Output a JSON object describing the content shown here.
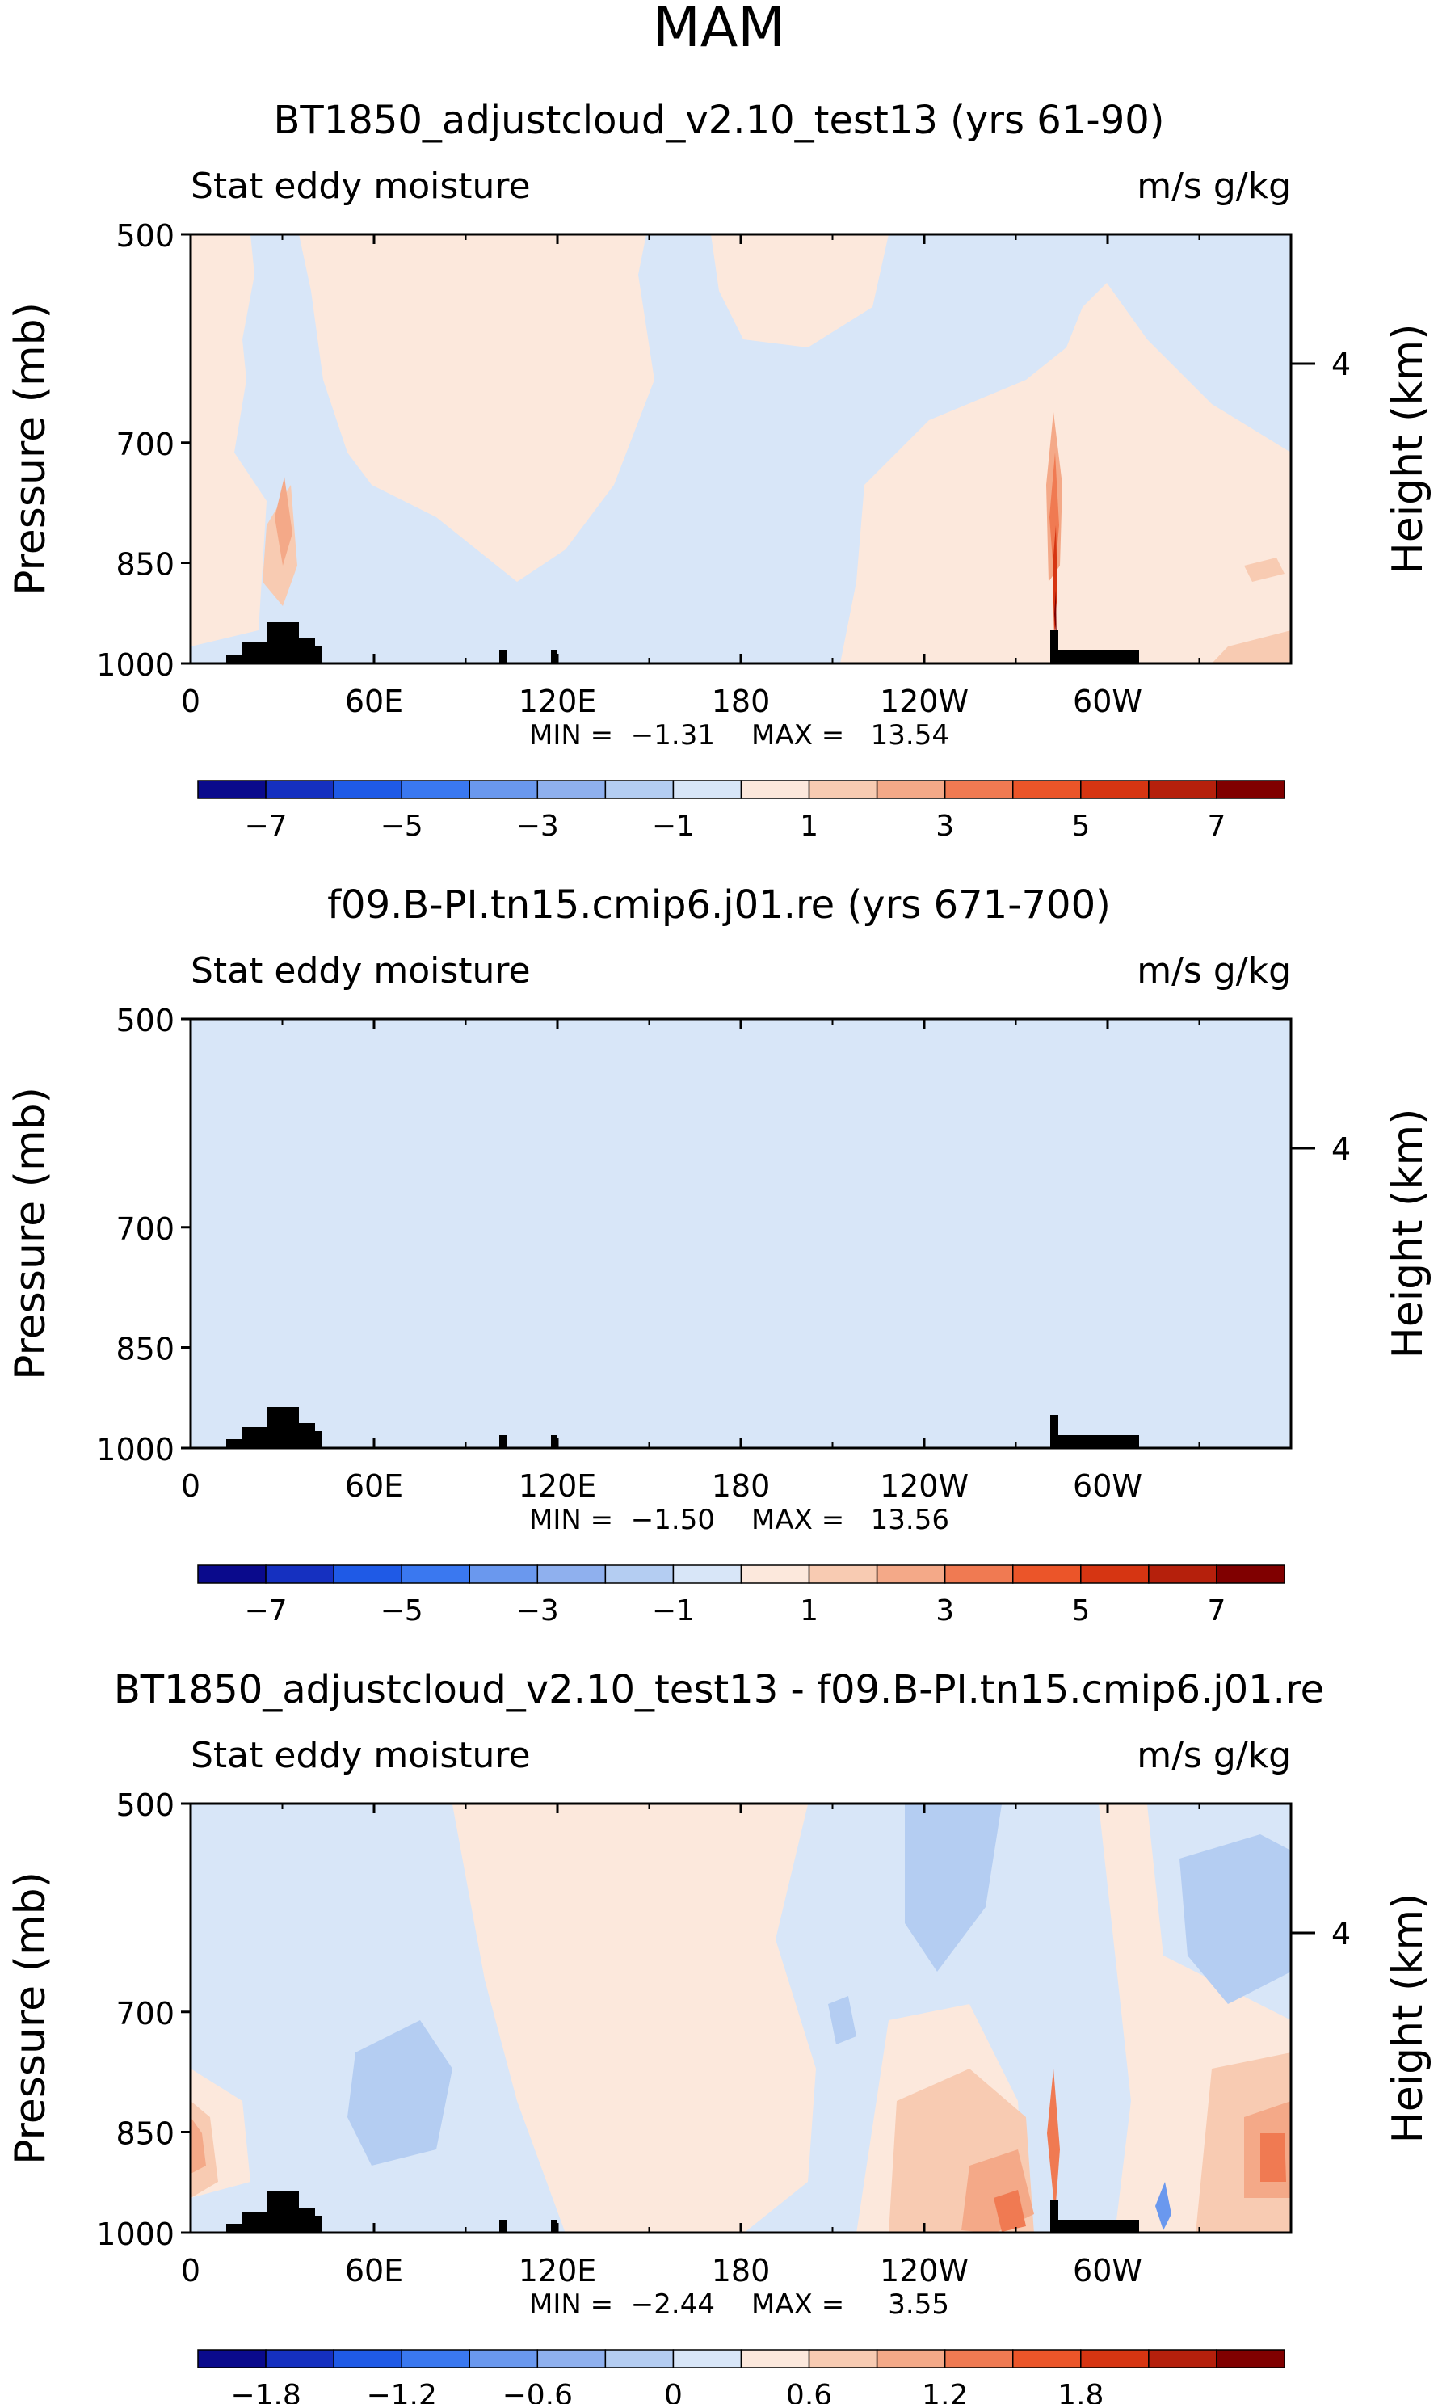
{
  "figure": {
    "title": "MAM"
  },
  "chart_data": [
    {
      "type": "contour",
      "title": "BT1850_adjustcloud_v2.10_test13 (yrs 61-90)",
      "left_label": "Stat eddy moisture",
      "right_label": "m/s g/kg",
      "ylabel": "Pressure (mb)",
      "ylabel_right": "Height (km)",
      "yticks": [
        "500",
        "700",
        "850",
        "1000"
      ],
      "yticks_right": [
        "4"
      ],
      "xticks": [
        "0",
        "60E",
        "120E",
        "180",
        "120W",
        "60W"
      ],
      "xlim": [
        0,
        360
      ],
      "ylim": [
        1000,
        500
      ],
      "min_label": "MIN =",
      "min_value": "−1.31",
      "max_label": "MAX =",
      "max_value": "13.54",
      "colorbar": {
        "levels": [
          -8,
          -7,
          -6,
          -5,
          -4,
          -3,
          -2,
          -1,
          0,
          1,
          2,
          3,
          4,
          5,
          6,
          7,
          8
        ],
        "labels": [
          "−7",
          "−5",
          "−3",
          "−1",
          "1",
          "3",
          "5",
          "7"
        ]
      }
    },
    {
      "type": "contour",
      "title": "f09.B-PI.tn15.cmip6.j01.re (yrs 671-700)",
      "left_label": "Stat eddy moisture",
      "right_label": "m/s g/kg",
      "ylabel": "Pressure (mb)",
      "ylabel_right": "Height (km)",
      "yticks": [
        "500",
        "700",
        "850",
        "1000"
      ],
      "yticks_right": [
        "4"
      ],
      "xticks": [
        "0",
        "60E",
        "120E",
        "180",
        "120W",
        "60W"
      ],
      "xlim": [
        0,
        360
      ],
      "ylim": [
        1000,
        500
      ],
      "min_label": "MIN =",
      "min_value": "−1.50",
      "max_label": "MAX =",
      "max_value": "13.56",
      "colorbar": {
        "levels": [
          -8,
          -7,
          -6,
          -5,
          -4,
          -3,
          -2,
          -1,
          0,
          1,
          2,
          3,
          4,
          5,
          6,
          7,
          8
        ],
        "labels": [
          "−7",
          "−5",
          "−3",
          "−1",
          "1",
          "3",
          "5",
          "7"
        ]
      }
    },
    {
      "type": "contour",
      "title": "BT1850_adjustcloud_v2.10_test13 - f09.B-PI.tn15.cmip6.j01.re",
      "left_label": "Stat eddy moisture",
      "right_label": "m/s g/kg",
      "ylabel": "Pressure (mb)",
      "ylabel_right": "Height (km)",
      "yticks": [
        "500",
        "700",
        "850",
        "1000"
      ],
      "yticks_right": [
        "4"
      ],
      "xticks": [
        "0",
        "60E",
        "120E",
        "180",
        "120W",
        "60W"
      ],
      "xlim": [
        0,
        360
      ],
      "ylim": [
        1000,
        500
      ],
      "min_label": "MIN =",
      "min_value": "−2.44",
      "max_label": "MAX =",
      "max_value": "3.55",
      "colorbar": {
        "levels": [
          -2.4,
          -2.1,
          -1.8,
          -1.5,
          -1.2,
          -0.9,
          -0.6,
          -0.3,
          0,
          0.3,
          0.6,
          0.9,
          1.2,
          1.5,
          1.8,
          2.1,
          2.4
        ],
        "labels": [
          "−1.8",
          "−1.2",
          "−0.6",
          "0",
          "0.6",
          "1.2",
          "1.8"
        ]
      }
    }
  ],
  "colors": [
    "#0a0a8c",
    "#1530c0",
    "#1f5ae6",
    "#3a78f0",
    "#6a98ee",
    "#8fb0ee",
    "#b4cdf2",
    "#d8e6f8",
    "#fce8dc",
    "#f8cbb2",
    "#f4a988",
    "#f07a52",
    "#eb5529",
    "#d63512",
    "#b5200c",
    "#800000"
  ]
}
